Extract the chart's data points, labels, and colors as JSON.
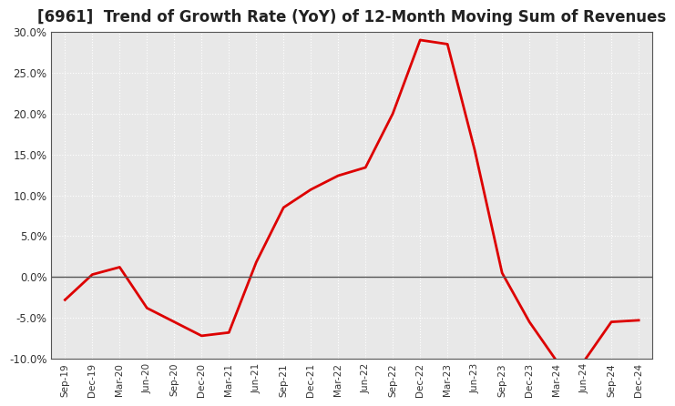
{
  "title": "[6961]  Trend of Growth Rate (YoY) of 12-Month Moving Sum of Revenues",
  "title_fontsize": 12,
  "line_color": "#dd0000",
  "line_width": 2.0,
  "background_color": "#ffffff",
  "plot_bg_color": "#e8e8e8",
  "grid_color": "#ffffff",
  "zero_line_color": "#555555",
  "ylim": [
    -0.1,
    0.3
  ],
  "yticks": [
    -0.1,
    -0.05,
    0.0,
    0.05,
    0.1,
    0.15,
    0.2,
    0.25,
    0.3
  ],
  "x_labels": [
    "Sep-19",
    "Dec-19",
    "Mar-20",
    "Jun-20",
    "Sep-20",
    "Dec-20",
    "Mar-21",
    "Jun-21",
    "Sep-21",
    "Dec-21",
    "Mar-22",
    "Jun-22",
    "Sep-22",
    "Dec-22",
    "Mar-23",
    "Jun-23",
    "Sep-23",
    "Dec-23",
    "Mar-24",
    "Jun-24",
    "Sep-24",
    "Dec-24"
  ],
  "values": [
    -0.028,
    0.003,
    0.012,
    -0.038,
    -0.055,
    -0.072,
    -0.068,
    0.018,
    0.085,
    0.107,
    0.124,
    0.134,
    0.2,
    0.29,
    0.285,
    0.155,
    0.005,
    -0.055,
    -0.103,
    -0.103,
    -0.055,
    -0.053
  ]
}
